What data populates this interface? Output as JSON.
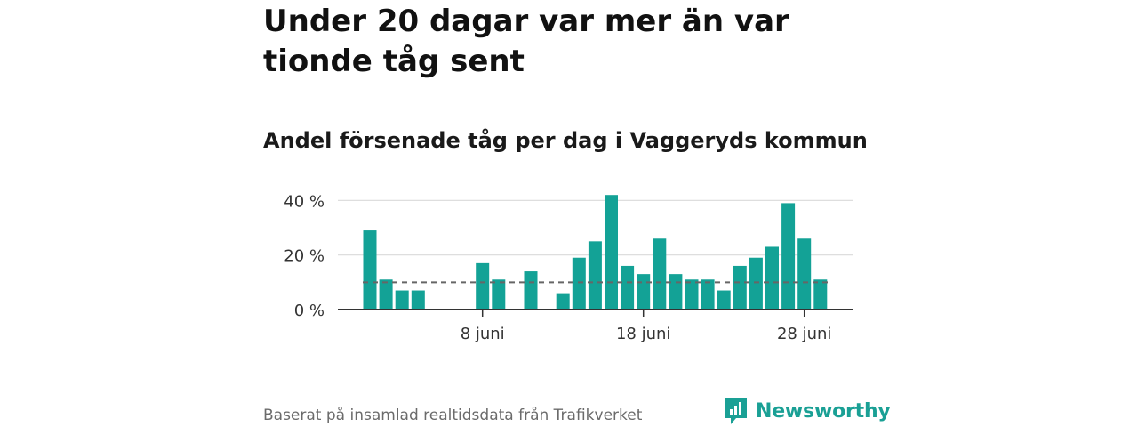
{
  "headline": "Under 20 dagar var mer än var tionde tåg sent",
  "subtitle": "Andel försenade tåg per dag i Vaggeryds kommun",
  "source": "Baserat på insamlad realtidsdata från Trafikverket",
  "brand": {
    "name": "Newsworthy",
    "icon": "newsworthy-logo-icon",
    "color": "#1aa095"
  },
  "chart_data": {
    "type": "bar",
    "title": "Andel försenade tåg per dag i Vaggeryds kommun",
    "xlabel": "",
    "ylabel": "",
    "x_unit": "juni",
    "days": [
      1,
      2,
      3,
      4,
      5,
      6,
      7,
      8,
      9,
      10,
      11,
      12,
      13,
      14,
      15,
      16,
      17,
      18,
      19,
      20,
      21,
      22,
      23,
      24,
      25,
      26,
      27,
      28,
      29,
      30
    ],
    "values": [
      29,
      11,
      7,
      7,
      0,
      0,
      0,
      17,
      11,
      0,
      14,
      0,
      6,
      19,
      25,
      42,
      16,
      13,
      26,
      13,
      11,
      11,
      7,
      16,
      19,
      23,
      39,
      26,
      11,
      null
    ],
    "ylim": [
      0,
      45
    ],
    "y_ticks": [
      0,
      20,
      40
    ],
    "y_tick_labels": [
      "0 %",
      "20 %",
      "40 %"
    ],
    "x_ticks": [
      8,
      18,
      28
    ],
    "x_tick_labels": [
      "8 juni",
      "18 juni",
      "28 juni"
    ],
    "reference_line": {
      "value": 10,
      "style": "dashed"
    },
    "grid": true,
    "bar_color": "#13a296",
    "reference_color": "#666666",
    "grid_color": "#d9d9d9",
    "axis_color": "#333333"
  }
}
